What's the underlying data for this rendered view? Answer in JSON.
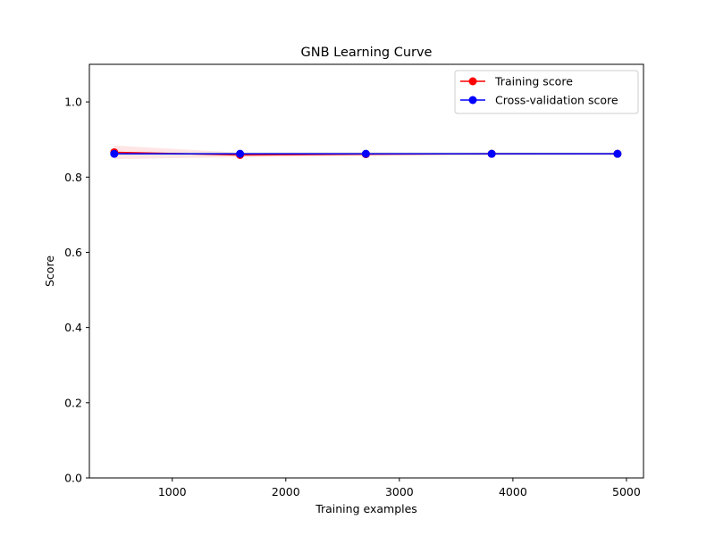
{
  "chart_data": {
    "type": "line",
    "title": "GNB Learning Curve",
    "xlabel": "Training examples",
    "ylabel": "Score",
    "xlim": [
      270,
      5150
    ],
    "ylim": [
      0.0,
      1.1
    ],
    "x_ticks": [
      1000,
      2000,
      3000,
      4000,
      5000
    ],
    "x_tick_labels": [
      "1000",
      "2000",
      "3000",
      "4000",
      "5000"
    ],
    "y_ticks": [
      0.0,
      0.2,
      0.4,
      0.6,
      0.8,
      1.0
    ],
    "y_tick_labels": [
      "0.0",
      "0.2",
      "0.4",
      "0.6",
      "0.8",
      "1.0"
    ],
    "grid": false,
    "legend_position": "top-right",
    "x": [
      489,
      1597,
      2705,
      3813,
      4921
    ],
    "series": [
      {
        "name": "Training score",
        "color": "#ff0000",
        "values": [
          0.866,
          0.859,
          0.861,
          0.862,
          0.862
        ],
        "band_low": [
          0.848,
          0.853,
          0.856,
          0.859,
          0.86
        ],
        "band_high": [
          0.884,
          0.865,
          0.866,
          0.865,
          0.864
        ],
        "band_color": "#ff0000"
      },
      {
        "name": "Cross-validation score",
        "color": "#0000ff",
        "values": [
          0.862,
          0.862,
          0.862,
          0.862,
          0.862
        ],
        "band_low": [
          0.858,
          0.858,
          0.858,
          0.858,
          0.858
        ],
        "band_high": [
          0.866,
          0.866,
          0.866,
          0.866,
          0.866
        ],
        "band_color": "#00ff00"
      }
    ]
  }
}
